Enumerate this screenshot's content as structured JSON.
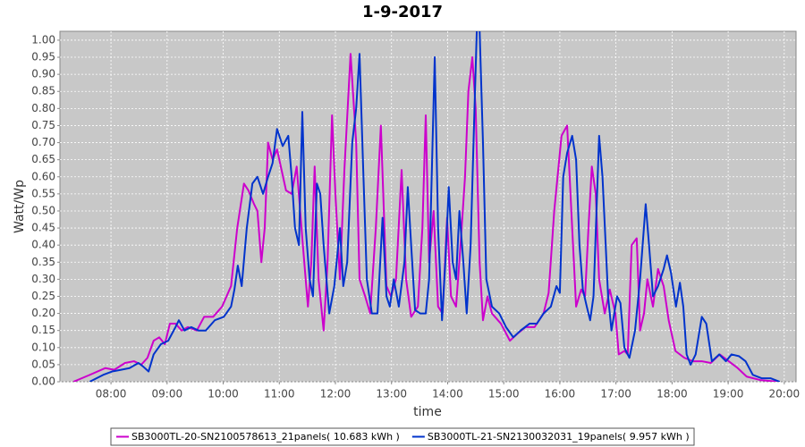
{
  "chart_data": {
    "type": "line",
    "title": "1-9-2017",
    "x_label": "time",
    "y_label": "Watt/Wp",
    "xlim": [
      7.09,
      20.21
    ],
    "ylim": [
      0,
      1.026
    ],
    "grid": true,
    "legend": "bottom",
    "xticks": [
      {
        "value": 8,
        "label": "08:00"
      },
      {
        "value": 9,
        "label": "09:00"
      },
      {
        "value": 10,
        "label": "10:00"
      },
      {
        "value": 11,
        "label": "11:00"
      },
      {
        "value": 12,
        "label": "12:00"
      },
      {
        "value": 13,
        "label": "13:00"
      },
      {
        "value": 14,
        "label": "14:00"
      },
      {
        "value": 15,
        "label": "15:00"
      },
      {
        "value": 16,
        "label": "16:00"
      },
      {
        "value": 17,
        "label": "17:00"
      },
      {
        "value": 18,
        "label": "18:00"
      },
      {
        "value": 19,
        "label": "19:00"
      },
      {
        "value": 20,
        "label": "20:00"
      }
    ],
    "yticks": [
      {
        "value": 0,
        "label": "0.00"
      },
      {
        "value": 0.05,
        "label": "0.05"
      },
      {
        "value": 0.1,
        "label": "0.10"
      },
      {
        "value": 0.15,
        "label": "0.15"
      },
      {
        "value": 0.2,
        "label": "0.20"
      },
      {
        "value": 0.25,
        "label": "0.25"
      },
      {
        "value": 0.3,
        "label": "0.30"
      },
      {
        "value": 0.35,
        "label": "0.35"
      },
      {
        "value": 0.4,
        "label": "0.40"
      },
      {
        "value": 0.45,
        "label": "0.45"
      },
      {
        "value": 0.5,
        "label": "0.50"
      },
      {
        "value": 0.55,
        "label": "0.55"
      },
      {
        "value": 0.6,
        "label": "0.60"
      },
      {
        "value": 0.65,
        "label": "0.65"
      },
      {
        "value": 0.7,
        "label": "0.70"
      },
      {
        "value": 0.75,
        "label": "0.75"
      },
      {
        "value": 0.8,
        "label": "0.80"
      },
      {
        "value": 0.85,
        "label": "0.85"
      },
      {
        "value": 0.9,
        "label": "0.90"
      },
      {
        "value": 0.95,
        "label": "0.95"
      },
      {
        "value": 1,
        "label": "1.00"
      }
    ],
    "series": [
      {
        "name": "SB3000TL-20-SN2100578613_21panels( 10.683 kWh )",
        "color": "#cc00cc",
        "x": [
          7.33,
          7.62,
          7.9,
          8.06,
          8.25,
          8.41,
          8.54,
          8.65,
          8.76,
          8.86,
          8.96,
          9.05,
          9.15,
          9.26,
          9.37,
          9.53,
          9.66,
          9.82,
          9.98,
          10.14,
          10.25,
          10.37,
          10.45,
          10.55,
          10.61,
          10.68,
          10.74,
          10.8,
          10.88,
          10.96,
          11.04,
          11.12,
          11.22,
          11.31,
          11.41,
          11.51,
          11.57,
          11.63,
          11.7,
          11.79,
          11.86,
          11.94,
          12.0,
          12.08,
          12.16,
          12.27,
          12.37,
          12.43,
          12.53,
          12.62,
          12.72,
          12.81,
          12.91,
          12.99,
          13.08,
          13.18,
          13.26,
          13.35,
          13.47,
          13.55,
          13.61,
          13.67,
          13.75,
          13.83,
          13.91,
          13.99,
          14.06,
          14.15,
          14.23,
          14.31,
          14.37,
          14.44,
          14.5,
          14.57,
          14.63,
          14.71,
          14.79,
          14.95,
          15.11,
          15.24,
          15.39,
          15.55,
          15.71,
          15.8,
          15.9,
          16.03,
          16.13,
          16.22,
          16.29,
          16.38,
          16.45,
          16.51,
          16.57,
          16.64,
          16.7,
          16.8,
          16.89,
          16.99,
          17.05,
          17.15,
          17.21,
          17.28,
          17.37,
          17.43,
          17.5,
          17.56,
          17.66,
          17.75,
          17.85,
          17.94,
          18.06,
          18.22,
          18.37,
          18.53,
          18.69,
          18.85,
          19.01,
          19.17,
          19.33,
          19.57,
          19.89
        ],
        "values": [
          0,
          0.02,
          0.04,
          0.035,
          0.055,
          0.06,
          0.05,
          0.07,
          0.12,
          0.13,
          0.11,
          0.17,
          0.17,
          0.15,
          0.16,
          0.15,
          0.19,
          0.19,
          0.22,
          0.28,
          0.45,
          0.58,
          0.56,
          0.52,
          0.5,
          0.35,
          0.45,
          0.7,
          0.65,
          0.68,
          0.62,
          0.56,
          0.55,
          0.63,
          0.42,
          0.22,
          0.35,
          0.63,
          0.3,
          0.15,
          0.35,
          0.78,
          0.55,
          0.3,
          0.62,
          0.96,
          0.7,
          0.3,
          0.25,
          0.2,
          0.45,
          0.75,
          0.28,
          0.25,
          0.3,
          0.62,
          0.3,
          0.19,
          0.22,
          0.45,
          0.78,
          0.35,
          0.5,
          0.22,
          0.2,
          0.48,
          0.25,
          0.22,
          0.4,
          0.6,
          0.85,
          0.95,
          0.8,
          0.35,
          0.18,
          0.25,
          0.2,
          0.17,
          0.12,
          0.14,
          0.16,
          0.16,
          0.2,
          0.26,
          0.5,
          0.72,
          0.75,
          0.45,
          0.22,
          0.27,
          0.25,
          0.45,
          0.63,
          0.55,
          0.3,
          0.2,
          0.27,
          0.2,
          0.08,
          0.09,
          0.08,
          0.4,
          0.42,
          0.15,
          0.2,
          0.3,
          0.22,
          0.33,
          0.28,
          0.18,
          0.09,
          0.07,
          0.06,
          0.06,
          0.055,
          0.08,
          0.06,
          0.04,
          0.015,
          0.005,
          0
        ]
      },
      {
        "name": "SB3000TL-21-SN2130032031_19panels( 9.957 kWh )",
        "color": "#0033cc",
        "x": [
          7.62,
          7.86,
          8.02,
          8.18,
          8.33,
          8.49,
          8.57,
          8.67,
          8.76,
          8.89,
          9.02,
          9.15,
          9.21,
          9.31,
          9.43,
          9.56,
          9.69,
          9.85,
          10.01,
          10.14,
          10.2,
          10.26,
          10.33,
          10.42,
          10.52,
          10.61,
          10.71,
          10.8,
          10.88,
          10.96,
          11.06,
          11.16,
          11.22,
          11.28,
          11.35,
          11.41,
          11.47,
          11.54,
          11.6,
          11.67,
          11.73,
          11.79,
          11.89,
          11.98,
          12.08,
          12.14,
          12.21,
          12.3,
          12.37,
          12.43,
          12.49,
          12.56,
          12.65,
          12.75,
          12.84,
          12.91,
          12.97,
          13.04,
          13.13,
          13.23,
          13.29,
          13.35,
          13.42,
          13.51,
          13.61,
          13.67,
          13.77,
          13.83,
          13.9,
          13.96,
          14.02,
          14.09,
          14.15,
          14.21,
          14.28,
          14.34,
          14.41,
          14.47,
          14.52,
          14.57,
          14.63,
          14.69,
          14.79,
          14.92,
          15.04,
          15.17,
          15.3,
          15.46,
          15.59,
          15.71,
          15.84,
          15.94,
          16.0,
          16.06,
          16.13,
          16.22,
          16.29,
          16.35,
          16.41,
          16.48,
          16.54,
          16.6,
          16.7,
          16.76,
          16.86,
          16.92,
          17.02,
          17.08,
          17.15,
          17.24,
          17.34,
          17.43,
          17.53,
          17.59,
          17.66,
          17.75,
          17.85,
          17.91,
          17.98,
          18.07,
          18.14,
          18.2,
          18.26,
          18.33,
          18.42,
          18.53,
          18.61,
          18.71,
          18.84,
          18.96,
          19.06,
          19.19,
          19.31,
          19.44,
          19.6,
          19.76,
          19.92
        ],
        "values": [
          0,
          0.02,
          0.03,
          0.035,
          0.04,
          0.055,
          0.045,
          0.03,
          0.08,
          0.11,
          0.12,
          0.16,
          0.18,
          0.15,
          0.16,
          0.15,
          0.15,
          0.18,
          0.19,
          0.22,
          0.27,
          0.34,
          0.28,
          0.45,
          0.58,
          0.6,
          0.55,
          0.6,
          0.64,
          0.74,
          0.69,
          0.72,
          0.6,
          0.45,
          0.4,
          0.79,
          0.45,
          0.3,
          0.25,
          0.58,
          0.55,
          0.4,
          0.2,
          0.28,
          0.45,
          0.28,
          0.35,
          0.7,
          0.8,
          0.96,
          0.65,
          0.3,
          0.2,
          0.2,
          0.48,
          0.25,
          0.22,
          0.3,
          0.22,
          0.35,
          0.57,
          0.4,
          0.21,
          0.2,
          0.2,
          0.3,
          0.95,
          0.45,
          0.18,
          0.35,
          0.57,
          0.35,
          0.3,
          0.5,
          0.35,
          0.2,
          0.4,
          0.75,
          1.03,
          1.03,
          0.7,
          0.3,
          0.22,
          0.2,
          0.16,
          0.13,
          0.15,
          0.17,
          0.17,
          0.2,
          0.22,
          0.28,
          0.26,
          0.6,
          0.67,
          0.72,
          0.65,
          0.4,
          0.27,
          0.22,
          0.18,
          0.25,
          0.72,
          0.6,
          0.25,
          0.15,
          0.25,
          0.23,
          0.1,
          0.07,
          0.15,
          0.3,
          0.52,
          0.4,
          0.25,
          0.28,
          0.33,
          0.37,
          0.32,
          0.22,
          0.29,
          0.22,
          0.08,
          0.05,
          0.08,
          0.19,
          0.17,
          0.06,
          0.08,
          0.06,
          0.08,
          0.075,
          0.06,
          0.02,
          0.01,
          0.01,
          0
        ]
      }
    ]
  }
}
